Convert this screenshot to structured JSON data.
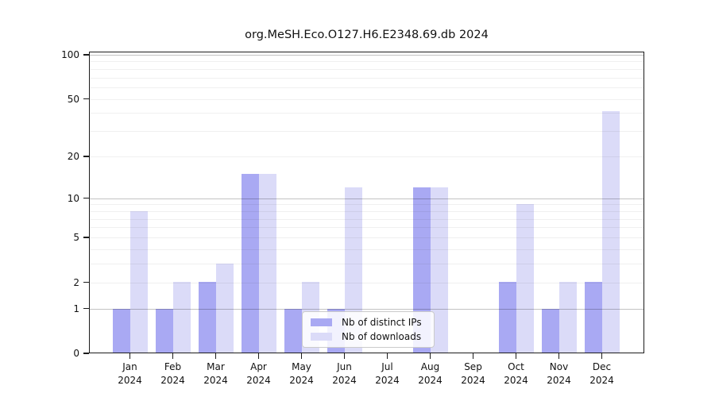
{
  "chart_data": {
    "type": "bar",
    "title": "org.MeSH.Eco.O127.H6.E2348.69.db 2024",
    "year_label": "2024",
    "categories": [
      "Jan",
      "Feb",
      "Mar",
      "Apr",
      "May",
      "Jun",
      "Jul",
      "Aug",
      "Sep",
      "Oct",
      "Nov",
      "Dec"
    ],
    "series": [
      {
        "name": "Nb of distinct IPs",
        "color": "#a9a9f3",
        "values": [
          1,
          1,
          2,
          15,
          1,
          1,
          0,
          12,
          0,
          2,
          1,
          2
        ]
      },
      {
        "name": "Nb of downloads",
        "color": "#dbdbf8",
        "values": [
          8,
          2,
          3,
          15,
          2,
          12,
          0,
          12,
          0,
          9,
          2,
          41
        ]
      }
    ],
    "y_axis": {
      "scale": "log10(1+x)",
      "tick_labels": [
        0,
        1,
        2,
        5,
        10,
        20,
        50,
        100
      ],
      "max": 105,
      "major_gridlines": [
        1,
        10,
        100
      ],
      "minor_gridlines": [
        2,
        3,
        4,
        5,
        6,
        7,
        8,
        9,
        20,
        30,
        40,
        50,
        60,
        70,
        80,
        90
      ]
    },
    "x_axis": {
      "grid": false
    },
    "legend_position": "lower center",
    "background_color": "#ffffff",
    "text_color": "#111111"
  }
}
